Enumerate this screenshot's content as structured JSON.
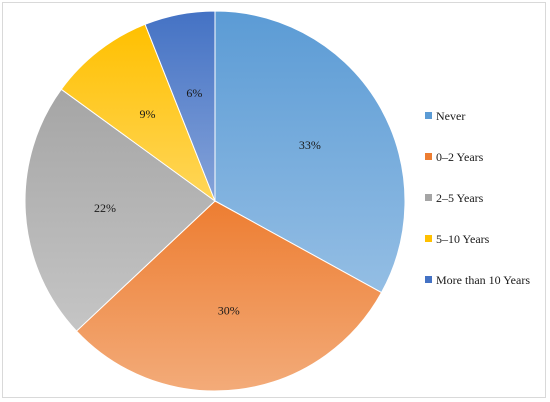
{
  "chart_data": {
    "type": "pie",
    "title": "",
    "legend_position": "right",
    "slices": [
      {
        "label": "Never",
        "value": 33,
        "display": "33%",
        "color": "#5b9bd5"
      },
      {
        "label": "0–2 Years",
        "value": 30,
        "display": "30%",
        "color": "#ed7d31"
      },
      {
        "label": "2–5 Years",
        "value": 22,
        "display": "22%",
        "color": "#a5a5a5"
      },
      {
        "label": "5–10 Years",
        "value": 9,
        "display": "9%",
        "color": "#ffc000"
      },
      {
        "label": "More than 10 Years",
        "value": 6,
        "display": "6%",
        "color": "#4472c4"
      }
    ]
  }
}
